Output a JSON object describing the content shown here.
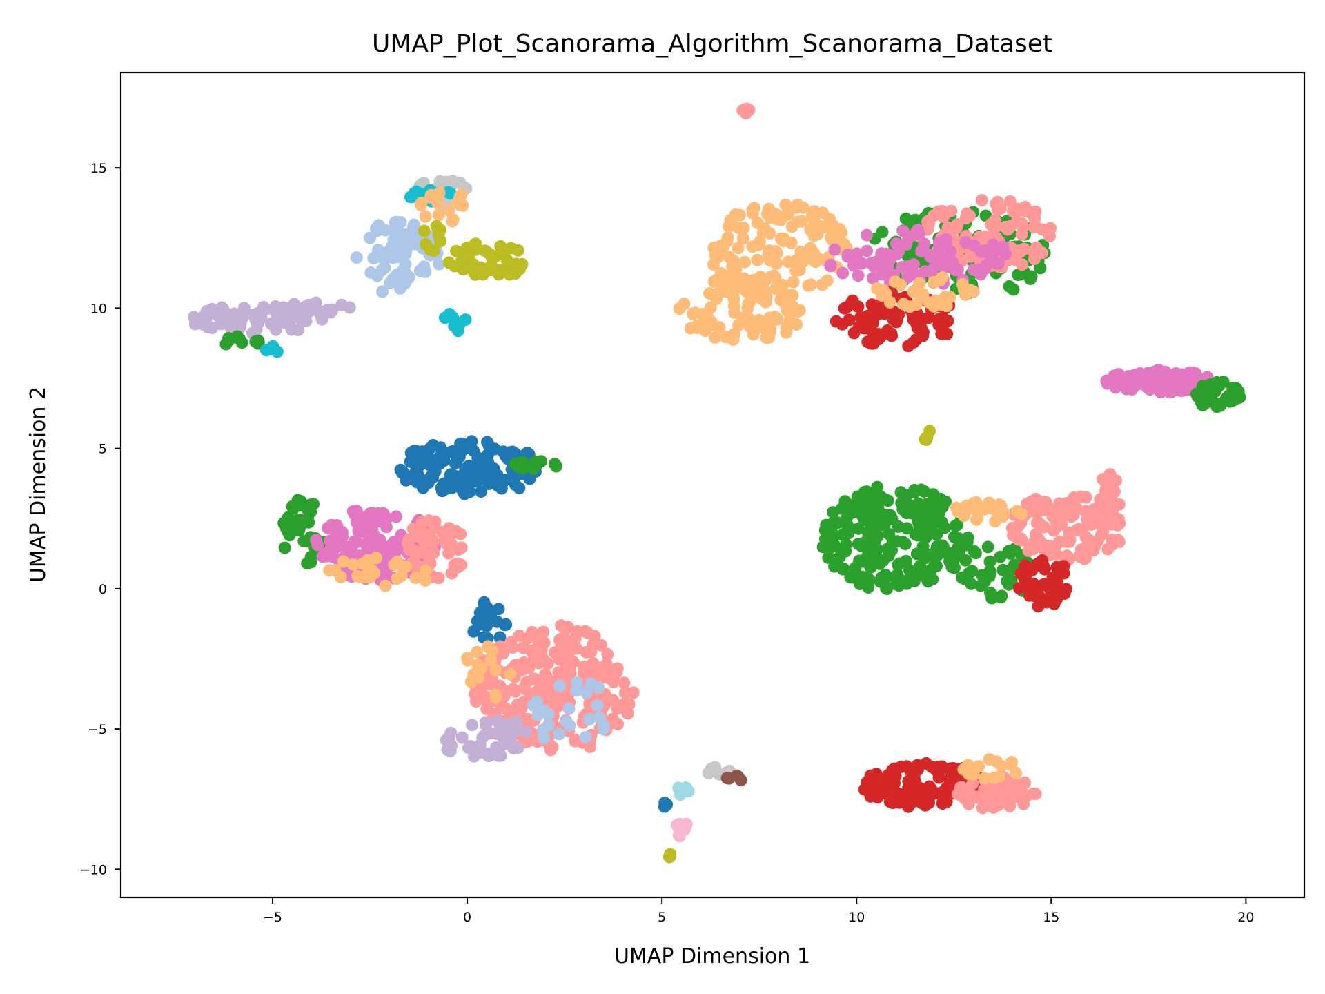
{
  "chart_data": {
    "type": "scatter",
    "title": "UMAP_Plot_Scanorama_Algorithm_Scanorama_Dataset",
    "xlabel": "UMAP Dimension 1",
    "ylabel": "UMAP Dimension 2",
    "xlim": [
      -8.9,
      21.5
    ],
    "ylim": [
      -11.0,
      18.4
    ],
    "xticks": [
      -5,
      0,
      5,
      10,
      15,
      20
    ],
    "yticks": [
      -10,
      -5,
      0,
      5,
      10,
      15
    ],
    "xtick_labels": [
      "−5",
      "0",
      "5",
      "10",
      "15",
      "20"
    ],
    "ytick_labels": [
      "−10",
      "−5",
      "0",
      "5",
      "10",
      "15"
    ],
    "grid": false,
    "legend": "none",
    "series_colors": {
      "blue": "#1f77b4",
      "light_blue": "#aec7e8",
      "orange_light": "#ffbb78",
      "green": "#2ca02c",
      "red": "#d62728",
      "salmon": "#ff9896",
      "lavender": "#c5b0d5",
      "brown": "#8c564b",
      "pink": "#e377c2",
      "light_pink": "#f7b6d2",
      "gray": "#c7c7c7",
      "olive": "#bcbd22",
      "cyan": "#17becf",
      "light_cyan": "#9edae5"
    },
    "clusters": [
      {
        "color": "blue",
        "cx": 0.1,
        "cy": 4.3,
        "rx": 1.9,
        "ry": 1.0,
        "n": 130
      },
      {
        "color": "green",
        "cx": -4.2,
        "cy": 2.0,
        "rx": 0.6,
        "ry": 1.2,
        "n": 40
      },
      {
        "color": "pink",
        "cx": -2.3,
        "cy": 1.6,
        "rx": 1.6,
        "ry": 1.3,
        "n": 140
      },
      {
        "color": "salmon",
        "cx": -0.8,
        "cy": 1.4,
        "rx": 0.8,
        "ry": 1.1,
        "n": 50
      },
      {
        "color": "orange_light",
        "cx": -2.2,
        "cy": 0.6,
        "rx": 1.5,
        "ry": 0.5,
        "n": 25
      },
      {
        "color": "green",
        "cx": 1.8,
        "cy": 4.4,
        "rx": 0.6,
        "ry": 0.15,
        "n": 15
      },
      {
        "color": "blue",
        "cx": 0.5,
        "cy": -1.2,
        "rx": 0.5,
        "ry": 0.8,
        "n": 18
      },
      {
        "color": "salmon",
        "cx": 2.2,
        "cy": -3.6,
        "rx": 2.1,
        "ry": 2.3,
        "n": 240
      },
      {
        "color": "lavender",
        "cx": 0.5,
        "cy": -5.3,
        "rx": 1.3,
        "ry": 0.7,
        "n": 45
      },
      {
        "color": "light_blue",
        "cx": 2.8,
        "cy": -4.5,
        "rx": 1.2,
        "ry": 1.2,
        "n": 25
      },
      {
        "color": "orange_light",
        "cx": 0.5,
        "cy": -3.0,
        "rx": 0.6,
        "ry": 1.0,
        "n": 15
      },
      {
        "color": "lavender",
        "cx": -5.4,
        "cy": 9.6,
        "rx": 1.7,
        "ry": 0.5,
        "n": 70
      },
      {
        "color": "lavender",
        "cx": -3.9,
        "cy": 10.0,
        "rx": 0.9,
        "ry": 0.2,
        "n": 20
      },
      {
        "color": "green",
        "cx": -5.8,
        "cy": 8.8,
        "rx": 0.6,
        "ry": 0.2,
        "n": 10
      },
      {
        "color": "cyan",
        "cx": -5.0,
        "cy": 8.5,
        "rx": 0.2,
        "ry": 0.15,
        "n": 5
      },
      {
        "color": "light_blue",
        "cx": -1.8,
        "cy": 11.8,
        "rx": 1.1,
        "ry": 1.3,
        "n": 80
      },
      {
        "color": "olive",
        "cx": 0.5,
        "cy": 11.7,
        "rx": 1.0,
        "ry": 0.7,
        "n": 50
      },
      {
        "color": "gray",
        "cx": -0.6,
        "cy": 14.1,
        "rx": 0.8,
        "ry": 0.5,
        "n": 25
      },
      {
        "color": "cyan",
        "cx": -1.0,
        "cy": 14.1,
        "rx": 0.6,
        "ry": 0.3,
        "n": 12
      },
      {
        "color": "orange_light",
        "cx": -0.6,
        "cy": 13.6,
        "rx": 0.7,
        "ry": 0.6,
        "n": 15
      },
      {
        "color": "cyan",
        "cx": -0.3,
        "cy": 9.5,
        "rx": 0.3,
        "ry": 0.4,
        "n": 8
      },
      {
        "color": "olive",
        "cx": -0.9,
        "cy": 12.6,
        "rx": 0.3,
        "ry": 0.6,
        "n": 8
      },
      {
        "color": "orange_light",
        "cx": 8.0,
        "cy": 12.1,
        "rx": 1.8,
        "ry": 1.7,
        "n": 130
      },
      {
        "color": "orange_light",
        "cx": 7.0,
        "cy": 9.9,
        "rx": 1.6,
        "ry": 1.2,
        "n": 90
      },
      {
        "color": "green",
        "cx": 12.6,
        "cy": 11.9,
        "rx": 2.3,
        "ry": 1.6,
        "n": 120
      },
      {
        "color": "salmon",
        "cx": 13.3,
        "cy": 12.6,
        "rx": 1.8,
        "ry": 1.3,
        "n": 110
      },
      {
        "color": "pink",
        "cx": 11.6,
        "cy": 11.8,
        "rx": 2.4,
        "ry": 1.0,
        "n": 90
      },
      {
        "color": "red",
        "cx": 11.0,
        "cy": 9.6,
        "rx": 1.6,
        "ry": 1.0,
        "n": 80
      },
      {
        "color": "orange_light",
        "cx": 11.8,
        "cy": 10.6,
        "rx": 1.3,
        "ry": 0.6,
        "n": 30
      },
      {
        "color": "salmon",
        "cx": 7.2,
        "cy": 17.0,
        "rx": 0.15,
        "ry": 0.15,
        "n": 5
      },
      {
        "color": "green",
        "cx": 11.0,
        "cy": 1.8,
        "rx": 1.9,
        "ry": 1.9,
        "n": 220
      },
      {
        "color": "green",
        "cx": 13.6,
        "cy": 0.6,
        "rx": 1.0,
        "ry": 1.0,
        "n": 40
      },
      {
        "color": "salmon",
        "cx": 15.4,
        "cy": 2.2,
        "rx": 1.5,
        "ry": 1.2,
        "n": 120
      },
      {
        "color": "salmon",
        "cx": 16.5,
        "cy": 3.4,
        "rx": 0.3,
        "ry": 0.8,
        "n": 15
      },
      {
        "color": "red",
        "cx": 14.8,
        "cy": 0.2,
        "rx": 0.7,
        "ry": 0.9,
        "n": 45
      },
      {
        "color": "orange_light",
        "cx": 13.4,
        "cy": 2.7,
        "rx": 1.0,
        "ry": 0.4,
        "n": 25
      },
      {
        "color": "olive",
        "cx": 11.8,
        "cy": 5.5,
        "rx": 0.2,
        "ry": 0.3,
        "n": 5
      },
      {
        "color": "pink",
        "cx": 17.8,
        "cy": 7.4,
        "rx": 1.4,
        "ry": 0.4,
        "n": 100
      },
      {
        "color": "green",
        "cx": 19.3,
        "cy": 6.9,
        "rx": 0.6,
        "ry": 0.5,
        "n": 40
      },
      {
        "color": "red",
        "cx": 11.7,
        "cy": -7.0,
        "rx": 1.6,
        "ry": 0.8,
        "n": 110
      },
      {
        "color": "salmon",
        "cx": 13.6,
        "cy": -7.3,
        "rx": 1.0,
        "ry": 0.6,
        "n": 70
      },
      {
        "color": "orange_light",
        "cx": 13.5,
        "cy": -6.4,
        "rx": 0.8,
        "ry": 0.4,
        "n": 15
      },
      {
        "color": "gray",
        "cx": 6.5,
        "cy": -6.5,
        "rx": 0.4,
        "ry": 0.15,
        "n": 8
      },
      {
        "color": "brown",
        "cx": 6.9,
        "cy": -6.8,
        "rx": 0.25,
        "ry": 0.15,
        "n": 5
      },
      {
        "color": "light_pink",
        "cx": 5.5,
        "cy": -8.5,
        "rx": 0.2,
        "ry": 0.4,
        "n": 10
      },
      {
        "color": "light_cyan",
        "cx": 5.5,
        "cy": -7.2,
        "rx": 0.2,
        "ry": 0.15,
        "n": 5
      },
      {
        "color": "olive",
        "cx": 5.1,
        "cy": -9.5,
        "rx": 0.15,
        "ry": 0.2,
        "n": 5
      },
      {
        "color": "blue",
        "cx": 5.1,
        "cy": -7.7,
        "rx": 0.1,
        "ry": 0.15,
        "n": 3
      }
    ]
  }
}
